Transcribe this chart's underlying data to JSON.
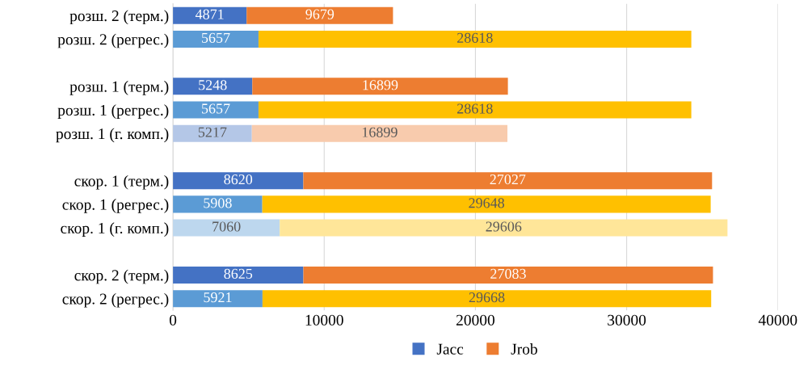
{
  "chart_data": {
    "type": "bar",
    "orientation": "horizontal",
    "stacked": true,
    "data_labels": true,
    "grid": "x",
    "legend": "bottom",
    "categories": [
      "розш. 2 (терм.)",
      "розш. 2 (регрес.)",
      null,
      "розш. 1 (терм.)",
      "розш. 1 (регрес.)",
      "розш. 1 (г. комп.)",
      null,
      "скор. 1 (терм.)",
      "скор. 1 (регрес.)",
      "скор. 1 (г. комп.)",
      null,
      "скор. 2 (терм.)",
      "скор. 2 (регрес.)"
    ],
    "xlim": [
      0,
      40000
    ],
    "xticks": [
      0,
      10000,
      20000,
      30000,
      40000
    ],
    "series": [
      {
        "name": "Jacc",
        "color": "#4472c4",
        "values": [
          4871,
          5657,
          null,
          5248,
          5657,
          5217,
          null,
          8620,
          5908,
          7060,
          null,
          8625,
          5921
        ],
        "colors": [
          "#4472c4",
          "#5b9bd5",
          null,
          "#4472c4",
          "#5b9bd5",
          "#b4c7e7",
          null,
          "#4472c4",
          "#5b9bd5",
          "#bdd7ee",
          null,
          "#4472c4",
          "#5b9bd5"
        ]
      },
      {
        "name": "Jrob",
        "color": "#ed7d31",
        "values": [
          9679,
          28618,
          null,
          16899,
          28618,
          16899,
          null,
          27027,
          29648,
          29606,
          null,
          27083,
          29668
        ],
        "colors": [
          "#ed7d31",
          "#ffc000",
          null,
          "#ed7d31",
          "#ffc000",
          "#f8cbad",
          null,
          "#ed7d31",
          "#ffc000",
          "#ffe699",
          null,
          "#ed7d31",
          "#ffc000"
        ]
      }
    ]
  }
}
